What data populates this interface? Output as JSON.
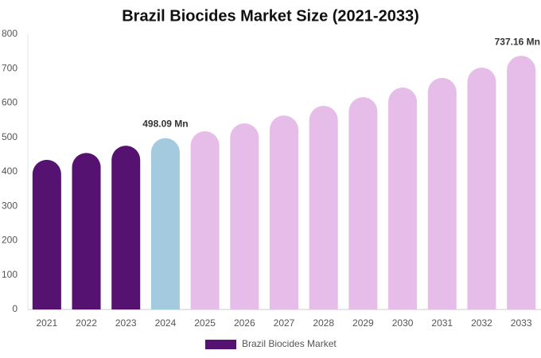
{
  "chart_data": {
    "type": "bar",
    "title": "Brazil Biocides Market Size (2021-2033)",
    "categories": [
      "2021",
      "2022",
      "2023",
      "2024",
      "2025",
      "2026",
      "2027",
      "2028",
      "2029",
      "2030",
      "2031",
      "2032",
      "2033"
    ],
    "series": [
      {
        "name": "Brazil Biocides Market",
        "color": "#561270",
        "values": [
          435,
          455,
          476,
          498.09,
          518,
          541,
          564,
          592,
          617,
          645,
          673,
          703,
          737.16
        ],
        "value_labels": [
          null,
          null,
          null,
          "498.09 Mn",
          null,
          null,
          null,
          null,
          null,
          null,
          null,
          null,
          "737.16 Mn"
        ],
        "colors": [
          "#561270",
          "#561270",
          "#561270",
          "#a4cadf",
          "#e6bde9",
          "#e6bde9",
          "#e6bde9",
          "#e6bde9",
          "#e6bde9",
          "#e6bde9",
          "#e6bde9",
          "#e6bde9",
          "#e6bde9"
        ]
      }
    ],
    "ylim": [
      0,
      800
    ],
    "yticks": [
      0,
      100,
      200,
      300,
      400,
      500,
      600,
      700,
      800
    ],
    "grid": false
  }
}
